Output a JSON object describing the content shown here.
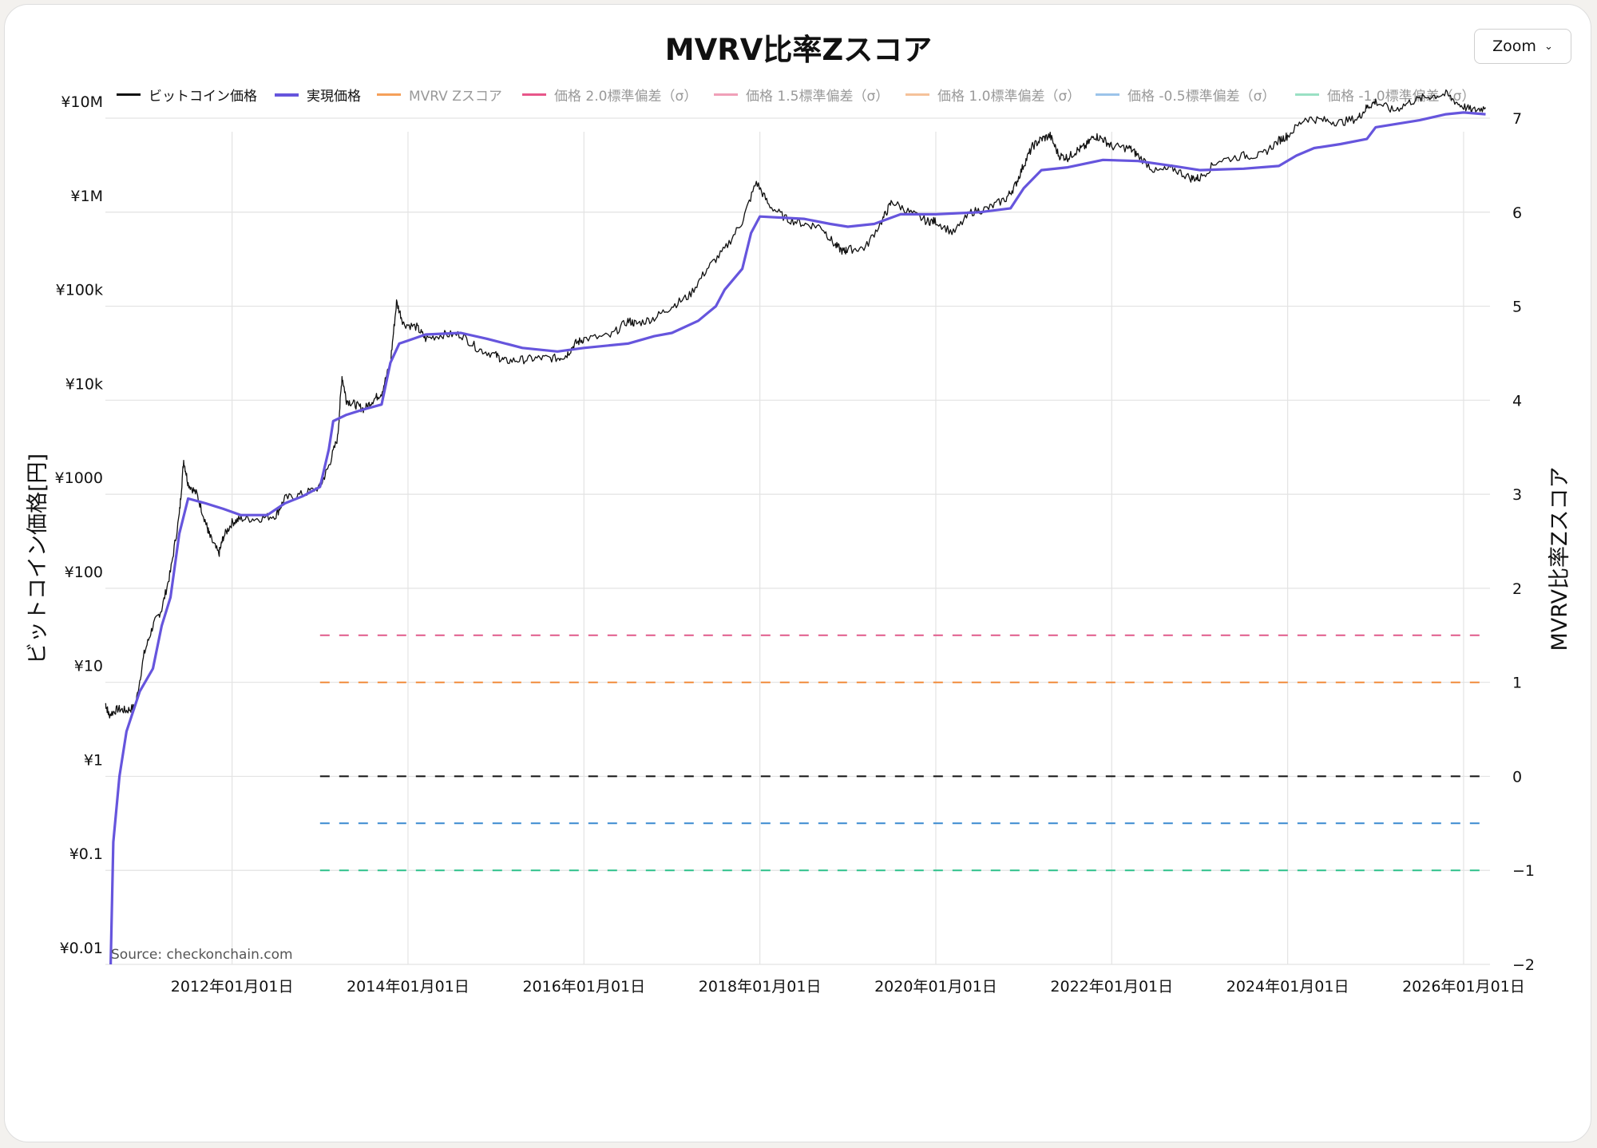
{
  "title": "MVRV比率Zスコア",
  "zoom": {
    "label": "Zoom",
    "icon": "chevron-down-icon"
  },
  "legend": [
    {
      "label": "ビットコイン価格",
      "color": "#111111",
      "active": true
    },
    {
      "label": "実現価格",
      "color": "#6655dd",
      "active": true
    },
    {
      "label": "MVRV Zスコア",
      "color": "#f5a05a",
      "active": false
    },
    {
      "label": "価格 2.0標準偏差（σ）",
      "color": "#e8568a",
      "active": false
    },
    {
      "label": "価格 1.5標準偏差（σ）",
      "color": "#f0a0b8",
      "active": false
    },
    {
      "label": "価格 1.0標準偏差（σ）",
      "color": "#f5c29a",
      "active": false
    },
    {
      "label": "価格 -0.5標準偏差（σ）",
      "color": "#9cc4ea",
      "active": false
    },
    {
      "label": "価格 -1.0標準偏差（σ）",
      "color": "#9ae0c4",
      "active": false
    }
  ],
  "source": "Source: checkonchain.com",
  "chart_data": {
    "type": "line",
    "title": "MVRV比率Zスコア",
    "ylabel_left": "ビットコイン価格[円]",
    "ylabel_right": "MVRV比率Zスコア",
    "y_left_scale": "log",
    "y_left_range": [
      0.01,
      10000000
    ],
    "y_left_ticks": [
      {
        "value": 10000000,
        "label": "¥10M"
      },
      {
        "value": 1000000,
        "label": "¥1M"
      },
      {
        "value": 100000,
        "label": "¥100k"
      },
      {
        "value": 10000,
        "label": "¥10k"
      },
      {
        "value": 1000,
        "label": "¥1000"
      },
      {
        "value": 100,
        "label": "¥100"
      },
      {
        "value": 10,
        "label": "¥10"
      },
      {
        "value": 1,
        "label": "¥1"
      },
      {
        "value": 0.1,
        "label": "¥0.1"
      },
      {
        "value": 0.01,
        "label": "¥0.01"
      }
    ],
    "y_right_range": [
      -2,
      7
    ],
    "y_right_ticks": [
      {
        "value": 7,
        "label": "7"
      },
      {
        "value": 6,
        "label": "6"
      },
      {
        "value": 5,
        "label": "5"
      },
      {
        "value": 4,
        "label": "4"
      },
      {
        "value": 3,
        "label": "3"
      },
      {
        "value": 2,
        "label": "2"
      },
      {
        "value": 1,
        "label": "1"
      },
      {
        "value": 0,
        "label": "0"
      },
      {
        "value": -1,
        "label": "−1"
      },
      {
        "value": -2,
        "label": "−2"
      }
    ],
    "x_range": [
      2010.56,
      2026.3
    ],
    "x_ticks": [
      {
        "value": 2012,
        "label": "2012年01月01日"
      },
      {
        "value": 2014,
        "label": "2014年01月01日"
      },
      {
        "value": 2016,
        "label": "2016年01月01日"
      },
      {
        "value": 2018,
        "label": "2018年01月01日"
      },
      {
        "value": 2020,
        "label": "2020年01月01日"
      },
      {
        "value": 2022,
        "label": "2022年01月01日"
      },
      {
        "value": 2024,
        "label": "2024年01月01日"
      },
      {
        "value": 2026,
        "label": "2026年01月01日"
      }
    ],
    "grid": true,
    "series": [
      {
        "name": "ビットコイン価格",
        "axis": "left",
        "color": "#111111",
        "points": [
          [
            2010.56,
            6
          ],
          [
            2010.6,
            4.5
          ],
          [
            2010.7,
            5.2
          ],
          [
            2010.8,
            5
          ],
          [
            2010.9,
            5.5
          ],
          [
            2011.0,
            20
          ],
          [
            2011.1,
            40
          ],
          [
            2011.2,
            60
          ],
          [
            2011.3,
            150
          ],
          [
            2011.4,
            600
          ],
          [
            2011.45,
            2300
          ],
          [
            2011.5,
            1300
          ],
          [
            2011.6,
            1000
          ],
          [
            2011.7,
            500
          ],
          [
            2011.75,
            350
          ],
          [
            2011.85,
            230
          ],
          [
            2011.9,
            350
          ],
          [
            2012.0,
            500
          ],
          [
            2012.1,
            550
          ],
          [
            2012.3,
            550
          ],
          [
            2012.5,
            600
          ],
          [
            2012.6,
            900
          ],
          [
            2012.8,
            1000
          ],
          [
            2013.0,
            1200
          ],
          [
            2013.1,
            2000
          ],
          [
            2013.2,
            4000
          ],
          [
            2013.25,
            18000
          ],
          [
            2013.3,
            10000
          ],
          [
            2013.4,
            9000
          ],
          [
            2013.5,
            8000
          ],
          [
            2013.6,
            10000
          ],
          [
            2013.7,
            12000
          ],
          [
            2013.8,
            25000
          ],
          [
            2013.87,
            110000
          ],
          [
            2013.95,
            65000
          ],
          [
            2014.1,
            60000
          ],
          [
            2014.2,
            45000
          ],
          [
            2014.4,
            50000
          ],
          [
            2014.6,
            50000
          ],
          [
            2014.8,
            35000
          ],
          [
            2015.0,
            30000
          ],
          [
            2015.1,
            26000
          ],
          [
            2015.3,
            27000
          ],
          [
            2015.5,
            28000
          ],
          [
            2015.7,
            28000
          ],
          [
            2015.8,
            30000
          ],
          [
            2015.9,
            40000
          ],
          [
            2016.0,
            45000
          ],
          [
            2016.3,
            48000
          ],
          [
            2016.5,
            70000
          ],
          [
            2016.6,
            65000
          ],
          [
            2016.8,
            75000
          ],
          [
            2017.0,
            100000
          ],
          [
            2017.2,
            130000
          ],
          [
            2017.4,
            250000
          ],
          [
            2017.6,
            400000
          ],
          [
            2017.8,
            800000
          ],
          [
            2017.96,
            2100000
          ],
          [
            2018.1,
            1200000
          ],
          [
            2018.3,
            850000
          ],
          [
            2018.5,
            750000
          ],
          [
            2018.7,
            700000
          ],
          [
            2018.85,
            450000
          ],
          [
            2018.95,
            380000
          ],
          [
            2019.0,
            400000
          ],
          [
            2019.2,
            420000
          ],
          [
            2019.4,
            850000
          ],
          [
            2019.5,
            1300000
          ],
          [
            2019.7,
            1000000
          ],
          [
            2019.9,
            800000
          ],
          [
            2020.0,
            800000
          ],
          [
            2020.2,
            600000
          ],
          [
            2020.4,
            1000000
          ],
          [
            2020.6,
            1100000
          ],
          [
            2020.8,
            1400000
          ],
          [
            2020.9,
            1900000
          ],
          [
            2021.0,
            3200000
          ],
          [
            2021.1,
            5000000
          ],
          [
            2021.2,
            6000000
          ],
          [
            2021.3,
            6500000
          ],
          [
            2021.4,
            4000000
          ],
          [
            2021.5,
            3800000
          ],
          [
            2021.6,
            4500000
          ],
          [
            2021.7,
            5000000
          ],
          [
            2021.8,
            6500000
          ],
          [
            2021.9,
            6000000
          ],
          [
            2022.0,
            5000000
          ],
          [
            2022.2,
            4800000
          ],
          [
            2022.3,
            4000000
          ],
          [
            2022.5,
            2700000
          ],
          [
            2022.7,
            2900000
          ],
          [
            2022.9,
            2300000
          ],
          [
            2023.0,
            2300000
          ],
          [
            2023.2,
            3500000
          ],
          [
            2023.5,
            4000000
          ],
          [
            2023.7,
            4000000
          ],
          [
            2023.9,
            5800000
          ],
          [
            2024.0,
            6500000
          ],
          [
            2024.2,
            10000000
          ],
          [
            2024.4,
            9500000
          ],
          [
            2024.6,
            9000000
          ],
          [
            2024.8,
            10000000
          ],
          [
            2024.9,
            13000000
          ],
          [
            2025.0,
            15000000
          ],
          [
            2025.2,
            12000000
          ],
          [
            2025.4,
            15000000
          ],
          [
            2025.6,
            17000000
          ],
          [
            2025.8,
            18000000
          ],
          [
            2025.95,
            14000000
          ],
          [
            2026.1,
            12000000
          ],
          [
            2026.25,
            13000000
          ]
        ]
      },
      {
        "name": "実現価格",
        "axis": "left",
        "color": "#6655dd",
        "points": [
          [
            2010.62,
            0.01
          ],
          [
            2010.65,
            0.2
          ],
          [
            2010.72,
            1
          ],
          [
            2010.8,
            3
          ],
          [
            2010.95,
            8
          ],
          [
            2011.1,
            14
          ],
          [
            2011.2,
            40
          ],
          [
            2011.3,
            80
          ],
          [
            2011.4,
            380
          ],
          [
            2011.5,
            900
          ],
          [
            2011.7,
            800
          ],
          [
            2011.9,
            700
          ],
          [
            2012.1,
            600
          ],
          [
            2012.4,
            600
          ],
          [
            2012.6,
            800
          ],
          [
            2012.8,
            950
          ],
          [
            2013.0,
            1200
          ],
          [
            2013.1,
            3000
          ],
          [
            2013.15,
            6000
          ],
          [
            2013.3,
            7000
          ],
          [
            2013.5,
            8000
          ],
          [
            2013.7,
            9000
          ],
          [
            2013.8,
            25000
          ],
          [
            2013.9,
            40000
          ],
          [
            2014.2,
            50000
          ],
          [
            2014.6,
            52000
          ],
          [
            2014.9,
            45000
          ],
          [
            2015.3,
            36000
          ],
          [
            2015.7,
            33000
          ],
          [
            2016.0,
            36000
          ],
          [
            2016.5,
            40000
          ],
          [
            2016.8,
            48000
          ],
          [
            2017.0,
            52000
          ],
          [
            2017.3,
            70000
          ],
          [
            2017.5,
            100000
          ],
          [
            2017.6,
            150000
          ],
          [
            2017.8,
            250000
          ],
          [
            2017.9,
            600000
          ],
          [
            2018.0,
            900000
          ],
          [
            2018.5,
            850000
          ],
          [
            2018.8,
            750000
          ],
          [
            2019.0,
            700000
          ],
          [
            2019.3,
            750000
          ],
          [
            2019.6,
            950000
          ],
          [
            2020.0,
            950000
          ],
          [
            2020.5,
            1000000
          ],
          [
            2020.85,
            1100000
          ],
          [
            2021.0,
            1800000
          ],
          [
            2021.2,
            2800000
          ],
          [
            2021.5,
            3000000
          ],
          [
            2021.9,
            3600000
          ],
          [
            2022.3,
            3500000
          ],
          [
            2022.7,
            3100000
          ],
          [
            2023.0,
            2800000
          ],
          [
            2023.5,
            2900000
          ],
          [
            2023.9,
            3100000
          ],
          [
            2024.1,
            4000000
          ],
          [
            2024.3,
            4800000
          ],
          [
            2024.6,
            5300000
          ],
          [
            2024.9,
            6000000
          ],
          [
            2025.0,
            8000000
          ],
          [
            2025.5,
            9500000
          ],
          [
            2025.8,
            11000000
          ],
          [
            2026.0,
            11500000
          ],
          [
            2026.25,
            11000000
          ]
        ]
      },
      {
        "name": "z=1.5",
        "axis": "right",
        "color": "#e05a8a",
        "dashed": true,
        "points": [
          [
            2013.0,
            1.5
          ],
          [
            2026.28,
            1.5
          ]
        ]
      },
      {
        "name": "z=1.0",
        "axis": "right",
        "color": "#f08a3a",
        "dashed": true,
        "points": [
          [
            2013.0,
            1.0
          ],
          [
            2026.28,
            1.0
          ]
        ]
      },
      {
        "name": "z=0",
        "axis": "right",
        "color": "#111111",
        "dashed": true,
        "points": [
          [
            2013.0,
            0.0
          ],
          [
            2026.28,
            0.0
          ]
        ]
      },
      {
        "name": "z=-0.5",
        "axis": "right",
        "color": "#3a8ad0",
        "dashed": true,
        "points": [
          [
            2013.0,
            -0.5
          ],
          [
            2026.28,
            -0.5
          ]
        ]
      },
      {
        "name": "z=-1.0",
        "axis": "right",
        "color": "#2cc08a",
        "dashed": true,
        "points": [
          [
            2013.0,
            -1.0
          ],
          [
            2026.28,
            -1.0
          ]
        ]
      }
    ]
  }
}
